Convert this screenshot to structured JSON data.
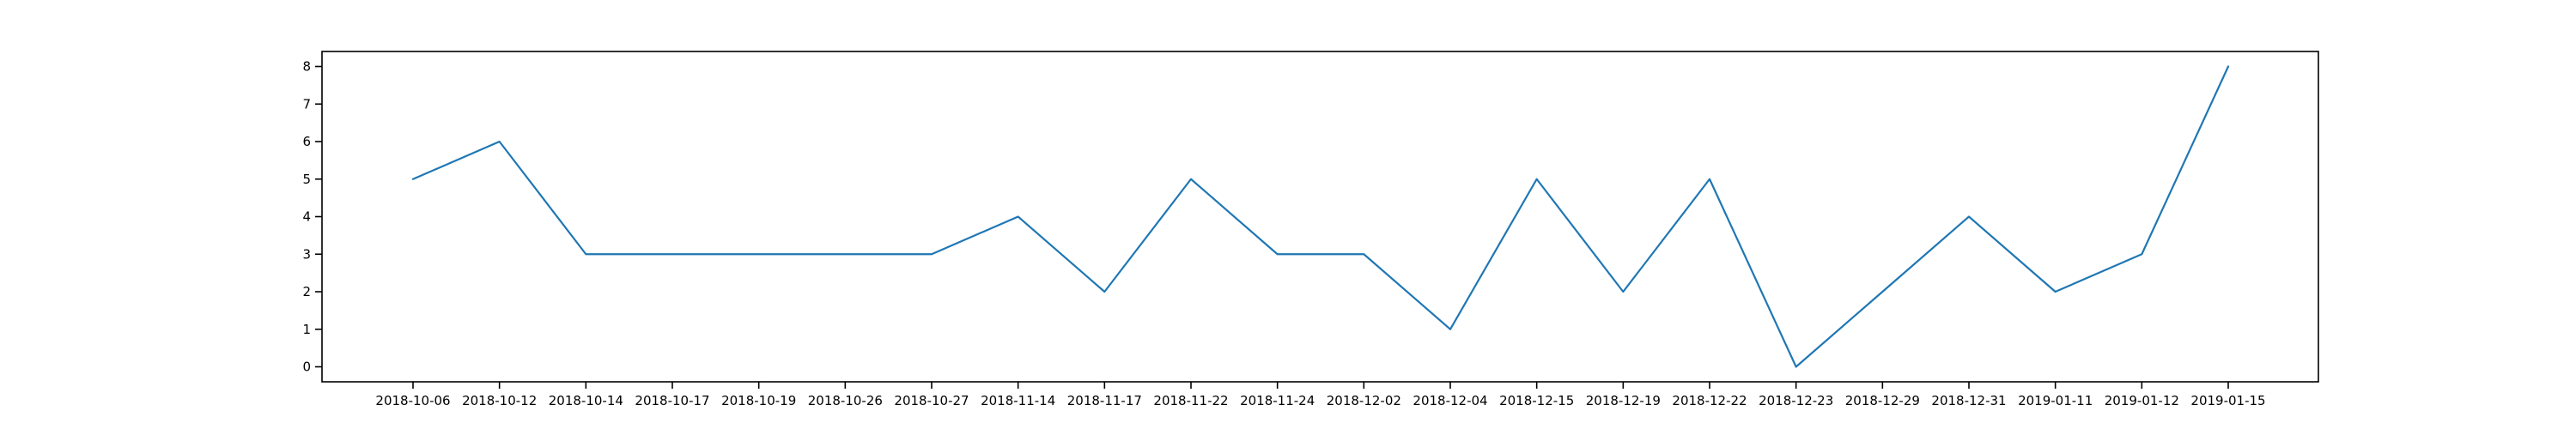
{
  "chart_data": {
    "type": "line",
    "title": "",
    "xlabel": "",
    "ylabel": "",
    "x": [
      "2018-10-06",
      "2018-10-12",
      "2018-10-14",
      "2018-10-17",
      "2018-10-19",
      "2018-10-26",
      "2018-10-27",
      "2018-11-14",
      "2018-11-17",
      "2018-11-22",
      "2018-11-24",
      "2018-12-02",
      "2018-12-04",
      "2018-12-15",
      "2018-12-19",
      "2018-12-22",
      "2018-12-23",
      "2018-12-29",
      "2018-12-31",
      "2019-01-11",
      "2019-01-12",
      "2019-01-15"
    ],
    "series": [
      {
        "values": [
          5,
          6,
          3,
          3,
          3,
          3,
          3,
          4,
          2,
          5,
          3,
          3,
          1,
          5,
          2,
          5,
          0,
          2,
          4,
          2,
          3,
          8
        ],
        "color": "#1f77b4"
      }
    ],
    "y_ticks": [
      0,
      1,
      2,
      3,
      4,
      5,
      6,
      7,
      8
    ],
    "ylim": [
      -0.4,
      8.4
    ],
    "grid": false,
    "legend": "none"
  }
}
